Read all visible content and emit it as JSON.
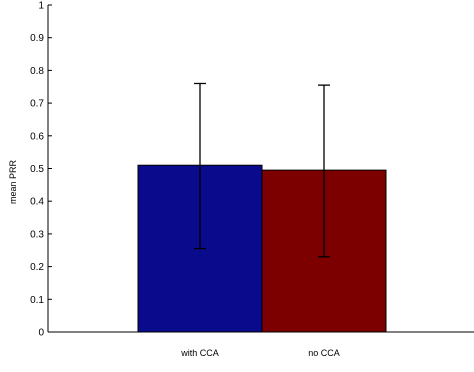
{
  "chart_data": {
    "type": "bar",
    "title": "",
    "xlabel": "",
    "ylabel": "mean PRR",
    "categories": [
      "with CCA",
      "no CCA"
    ],
    "values": [
      0.51,
      0.495
    ],
    "error_low": [
      0.255,
      0.23
    ],
    "error_high": [
      0.76,
      0.755
    ],
    "ylim": [
      0,
      1
    ],
    "yticks": [
      "0",
      "0.1",
      "0.2",
      "0.3",
      "0.4",
      "0.5",
      "0.6",
      "0.7",
      "0.8",
      "0.9",
      "1"
    ],
    "bar_colors": [
      "#0a0a8c",
      "#7d0000"
    ],
    "grid": false,
    "legend": "none"
  }
}
